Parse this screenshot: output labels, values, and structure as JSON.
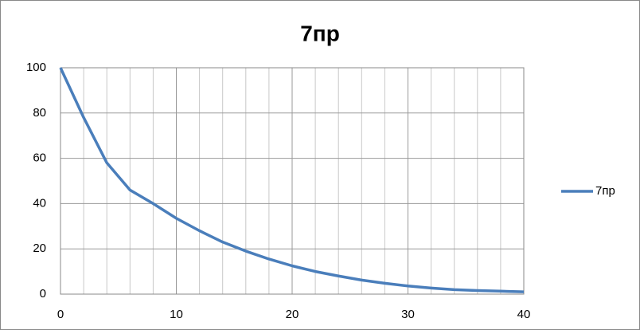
{
  "chart_data": {
    "type": "line",
    "title": "7пр",
    "x": [
      0,
      2,
      4,
      6,
      8,
      10,
      12,
      14,
      16,
      18,
      20,
      22,
      24,
      26,
      28,
      30,
      32,
      34,
      36,
      38,
      40
    ],
    "series": [
      {
        "name": "7пр",
        "color": "#4a7ebb",
        "values": [
          100,
          78,
          58,
          46,
          40,
          33.5,
          28,
          23,
          19,
          15.5,
          12.5,
          10,
          8,
          6.2,
          4.8,
          3.6,
          2.7,
          2,
          1.6,
          1.3,
          1
        ]
      }
    ],
    "xlim": [
      0,
      40
    ],
    "xticks": [
      0,
      10,
      20,
      30,
      40
    ],
    "xminorticks": [
      2,
      4,
      6,
      8,
      12,
      14,
      16,
      18,
      22,
      24,
      26,
      28,
      32,
      34,
      36,
      38
    ],
    "ylim": [
      0,
      100
    ],
    "yticks": [
      0,
      20,
      40,
      60,
      80,
      100
    ],
    "grid": true,
    "legend": "right"
  }
}
